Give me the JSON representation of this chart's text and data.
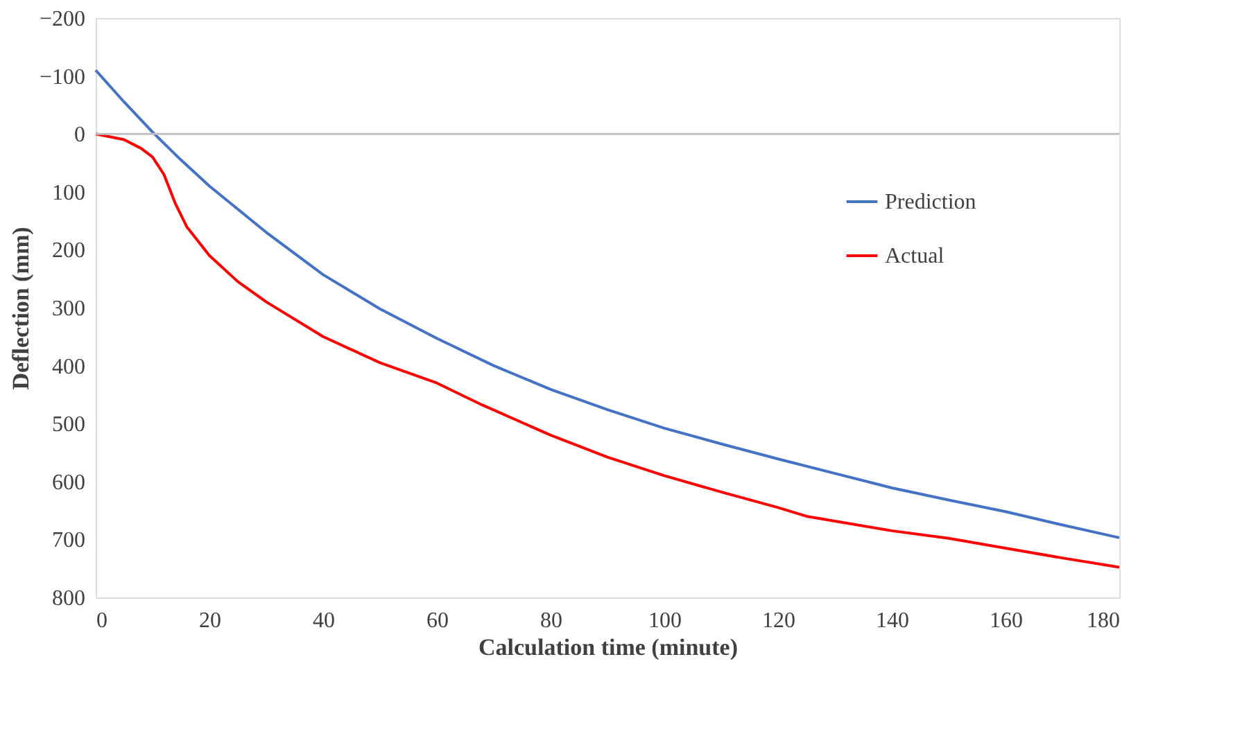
{
  "chart_data": {
    "type": "line",
    "xlabel": "Calculation time (minute)",
    "ylabel": "Deflection (mm)",
    "xlim": [
      0,
      180
    ],
    "xticks": [
      0,
      20,
      40,
      60,
      80,
      100,
      120,
      140,
      160,
      180
    ],
    "ylim": [
      800,
      -200
    ],
    "yticks": [
      -200,
      -100,
      0,
      100,
      200,
      300,
      400,
      500,
      600,
      700,
      800
    ],
    "grid": false,
    "legend": "right",
    "line_style": "solid",
    "marker": "none",
    "ref_lines": [
      {
        "axis": "y",
        "value": 0,
        "color": "#bfbfbf"
      }
    ],
    "series": [
      {
        "name": "Prediction",
        "color": "#4472c4",
        "x": [
          0,
          5,
          10,
          15,
          20,
          30,
          40,
          50,
          60,
          70,
          80,
          90,
          100,
          110,
          120,
          130,
          140,
          150,
          160,
          170,
          180
        ],
        "values": [
          -110,
          -55,
          -3,
          45,
          90,
          170,
          243,
          302,
          353,
          400,
          441,
          476,
          508,
          535,
          561,
          586,
          611,
          632,
          652,
          675,
          697
        ]
      },
      {
        "name": "Actual",
        "color": "#ff0000",
        "x": [
          0,
          5,
          8,
          10,
          12,
          14,
          16,
          20,
          25,
          30,
          40,
          50,
          60,
          68,
          80,
          90,
          100,
          110,
          120,
          125,
          140,
          150,
          160,
          170,
          180
        ],
        "values": [
          0,
          10,
          25,
          40,
          70,
          120,
          160,
          210,
          255,
          290,
          350,
          395,
          430,
          468,
          520,
          558,
          590,
          618,
          645,
          660,
          685,
          698,
          715,
          732,
          748
        ]
      }
    ]
  }
}
